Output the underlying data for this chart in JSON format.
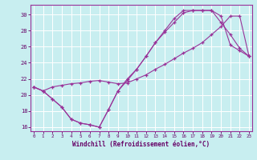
{
  "xlabel": "Windchill (Refroidissement éolien,°C)",
  "background_color": "#c8eef0",
  "grid_color": "#ffffff",
  "line_color": "#993399",
  "xlim_min": -0.3,
  "xlim_max": 23.3,
  "ylim_min": 15.5,
  "ylim_max": 31.2,
  "xticks": [
    0,
    1,
    2,
    3,
    4,
    5,
    6,
    7,
    8,
    9,
    10,
    11,
    12,
    13,
    14,
    15,
    16,
    17,
    18,
    19,
    20,
    21,
    22,
    23
  ],
  "yticks": [
    16,
    18,
    20,
    22,
    24,
    26,
    28,
    30
  ],
  "line1_x": [
    0,
    1,
    2,
    3,
    4,
    5,
    6,
    7,
    8,
    9,
    10,
    11,
    12,
    13,
    14,
    15,
    16,
    17,
    18,
    19,
    20,
    21,
    22,
    23
  ],
  "line1_y": [
    21.0,
    20.5,
    19.5,
    18.5,
    17.0,
    16.5,
    16.3,
    16.0,
    18.2,
    20.5,
    21.8,
    23.2,
    24.8,
    26.5,
    27.8,
    29.0,
    30.2,
    30.5,
    30.5,
    30.5,
    29.0,
    27.5,
    25.8,
    24.8
  ],
  "line2_x": [
    0,
    1,
    2,
    3,
    4,
    5,
    6,
    7,
    8,
    9,
    10,
    11,
    12,
    13,
    14,
    15,
    16,
    17,
    18,
    19,
    20,
    21,
    22,
    23
  ],
  "line2_y": [
    21.0,
    20.5,
    19.5,
    18.5,
    17.0,
    16.5,
    16.3,
    16.0,
    18.2,
    20.5,
    22.0,
    23.2,
    24.8,
    26.5,
    28.0,
    29.5,
    30.5,
    30.5,
    30.5,
    30.5,
    29.8,
    26.2,
    25.5,
    24.8
  ],
  "line3_x": [
    0,
    1,
    2,
    3,
    4,
    5,
    6,
    7,
    8,
    9,
    10,
    11,
    12,
    13,
    14,
    15,
    16,
    17,
    18,
    19,
    20,
    21,
    22,
    23
  ],
  "line3_y": [
    21.0,
    20.5,
    21.0,
    21.2,
    21.4,
    21.5,
    21.7,
    21.8,
    21.6,
    21.4,
    21.5,
    22.0,
    22.5,
    23.2,
    23.8,
    24.5,
    25.2,
    25.8,
    26.5,
    27.5,
    28.5,
    29.8,
    29.8,
    24.8
  ]
}
